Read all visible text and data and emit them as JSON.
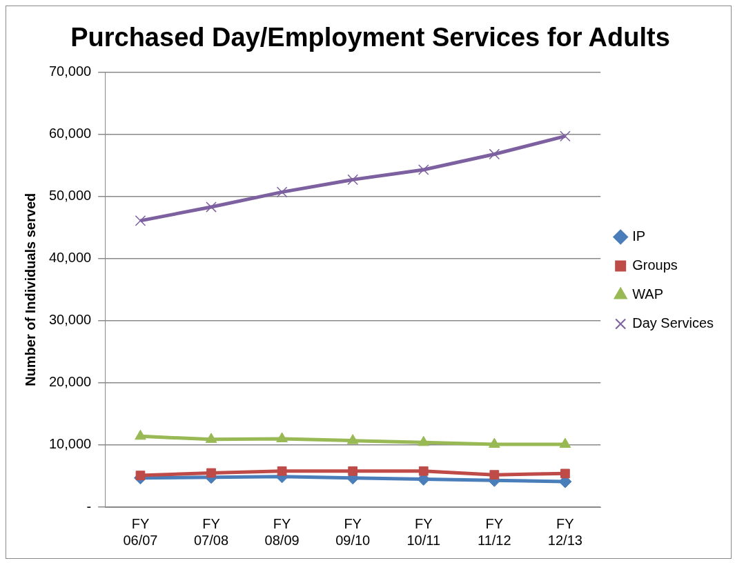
{
  "chart_data": {
    "type": "line",
    "title": "Purchased Day/Employment Services for Adults",
    "ylabel": "Number of Individuals served",
    "categories": [
      "FY 06/07",
      "FY 07/08",
      "FY 08/09",
      "FY 09/10",
      "FY 10/11",
      "FY 11/12",
      "FY 12/13"
    ],
    "series": [
      {
        "name": "IP",
        "color": "#4a7ebb",
        "marker": "diamond",
        "values": [
          4700,
          4800,
          4900,
          4700,
          4500,
          4300,
          4100
        ]
      },
      {
        "name": "Groups",
        "color": "#be4b48",
        "marker": "square",
        "values": [
          5100,
          5500,
          5800,
          5800,
          5800,
          5200,
          5400
        ]
      },
      {
        "name": "WAP",
        "color": "#98b954",
        "marker": "triangle",
        "values": [
          11400,
          10900,
          11000,
          10700,
          10400,
          10100,
          10100
        ]
      },
      {
        "name": "Day Services",
        "color": "#7d60a0",
        "marker": "cross",
        "values": [
          46100,
          48300,
          50700,
          52700,
          54300,
          56800,
          59700
        ]
      }
    ],
    "ylim": [
      0,
      70000
    ],
    "yticks": [
      {
        "value": 0,
        "label": "-"
      },
      {
        "value": 10000,
        "label": "10,000"
      },
      {
        "value": 20000,
        "label": "20,000"
      },
      {
        "value": 30000,
        "label": "30,000"
      },
      {
        "value": 40000,
        "label": "40,000"
      },
      {
        "value": 50000,
        "label": "50,000"
      },
      {
        "value": 60000,
        "label": "60,000"
      },
      {
        "value": 70000,
        "label": "70,000"
      }
    ],
    "grid": "y",
    "legend": "right",
    "line_style": "solid"
  }
}
